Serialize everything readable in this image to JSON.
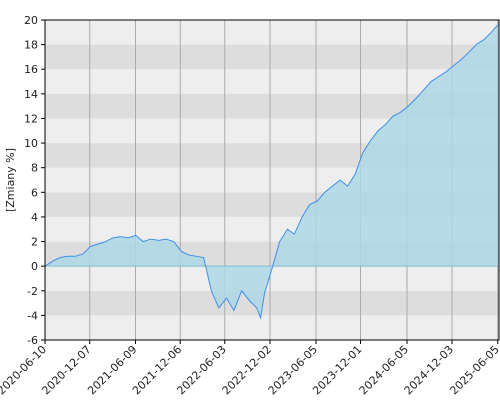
{
  "chart_data": {
    "type": "area",
    "y_label": "[Zmiany %]",
    "x": [
      "2020-06-10",
      "2020-07-10",
      "2020-08-10",
      "2020-09-10",
      "2020-10-10",
      "2020-11-10",
      "2020-12-10",
      "2021-01-10",
      "2021-02-10",
      "2021-03-10",
      "2021-04-10",
      "2021-05-10",
      "2021-06-10",
      "2021-07-10",
      "2021-08-10",
      "2021-09-10",
      "2021-10-10",
      "2021-11-10",
      "2021-12-10",
      "2022-01-10",
      "2022-02-10",
      "2022-03-10",
      "2022-04-10",
      "2022-05-10",
      "2022-06-10",
      "2022-07-10",
      "2022-08-10",
      "2022-09-10",
      "2022-10-10",
      "2022-10-25",
      "2022-11-10",
      "2022-12-10",
      "2023-01-10",
      "2023-02-10",
      "2023-03-10",
      "2023-04-10",
      "2023-05-10",
      "2023-06-10",
      "2023-07-10",
      "2023-08-10",
      "2023-09-10",
      "2023-10-10",
      "2023-11-10",
      "2023-12-10",
      "2024-01-10",
      "2024-02-10",
      "2024-03-10",
      "2024-04-10",
      "2024-05-10",
      "2024-06-10",
      "2024-07-10",
      "2024-08-10",
      "2024-09-10",
      "2024-10-10",
      "2024-11-10",
      "2024-12-10",
      "2025-01-10",
      "2025-02-10",
      "2025-03-10",
      "2025-04-10",
      "2025-05-10",
      "2025-06-05"
    ],
    "values": [
      0,
      0.4,
      0.7,
      0.8,
      0.8,
      1.0,
      1.6,
      1.8,
      2.0,
      2.3,
      2.4,
      2.3,
      2.5,
      2.0,
      2.2,
      2.1,
      2.2,
      2.0,
      1.2,
      0.9,
      0.8,
      0.7,
      -2.0,
      -3.4,
      -2.6,
      -3.6,
      -2.0,
      -2.8,
      -3.4,
      -4.2,
      -2.2,
      -0.2,
      2.0,
      3.0,
      2.6,
      4.0,
      5.0,
      5.3,
      6.0,
      6.5,
      7.0,
      6.5,
      7.5,
      9.2,
      10.2,
      11.0,
      11.5,
      12.2,
      12.5,
      13.0,
      13.6,
      14.3,
      15.0,
      15.4,
      15.8,
      16.3,
      16.8,
      17.4,
      18.0,
      18.4,
      19.0,
      19.6
    ],
    "color": "#3d8fe6",
    "fill": "#add8e6",
    "xlim": [
      "2020-06-10",
      "2025-06-10"
    ],
    "xticks": [
      "2020-06-10",
      "2020-12-07",
      "2021-06-09",
      "2021-12-06",
      "2022-06-03",
      "2022-12-02",
      "2023-06-05",
      "2023-12-01",
      "2024-06-05",
      "2024-12-03",
      "2025-06-05"
    ],
    "ylim": [
      -6,
      20
    ],
    "yticks": [
      -6,
      -4,
      -2,
      0,
      2,
      4,
      6,
      8,
      10,
      12,
      14,
      16,
      18,
      20
    ],
    "grid": true
  }
}
